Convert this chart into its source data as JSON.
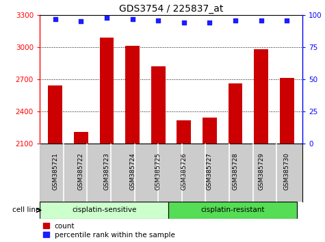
{
  "title": "GDS3754 / 225837_at",
  "samples": [
    "GSM385721",
    "GSM385722",
    "GSM385723",
    "GSM385724",
    "GSM385725",
    "GSM385726",
    "GSM385727",
    "GSM385728",
    "GSM385729",
    "GSM385730"
  ],
  "counts": [
    2640,
    2210,
    3090,
    3010,
    2820,
    2320,
    2340,
    2660,
    2980,
    2710
  ],
  "percentile_ranks": [
    97,
    95,
    98,
    97,
    96,
    94,
    94,
    96,
    96,
    96
  ],
  "bar_color": "#cc0000",
  "dot_color": "#1c1cff",
  "ylim_left": [
    2100,
    3300
  ],
  "ylim_right": [
    0,
    100
  ],
  "yticks_left": [
    2100,
    2400,
    2700,
    3000,
    3300
  ],
  "yticks_right": [
    0,
    25,
    50,
    75,
    100
  ],
  "groups": [
    {
      "label": "cisplatin-sensitive",
      "start": 0,
      "end": 5,
      "color": "#ccffcc"
    },
    {
      "label": "cisplatin-resistant",
      "start": 5,
      "end": 10,
      "color": "#55dd55"
    }
  ],
  "group_label": "cell line",
  "legend_count": "count",
  "legend_percentile": "percentile rank within the sample",
  "background_color": "#ffffff",
  "plot_bg_color": "#ffffff",
  "tick_bg_color": "#cccccc"
}
